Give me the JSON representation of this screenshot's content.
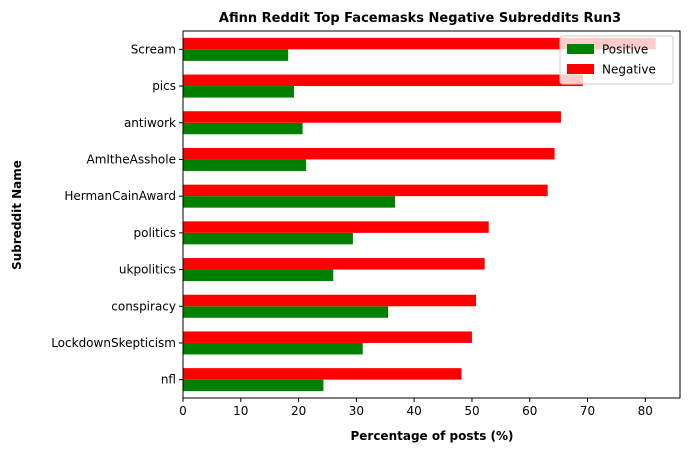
{
  "chart_data": {
    "type": "bar",
    "orientation": "horizontal",
    "title": "Afinn Reddit Top Facemasks Negative Subreddits Run3",
    "xlabel": "Percentage of posts (%)",
    "ylabel": "Subreddit Name",
    "xlim": [
      0,
      86
    ],
    "xticks": [
      "0",
      "10",
      "20",
      "30",
      "40",
      "50",
      "60",
      "70",
      "80"
    ],
    "categories": [
      "Scream",
      "pics",
      "antiwork",
      "AmItheAsshole",
      "HermanCainAward",
      "politics",
      "ukpolitics",
      "conspiracy",
      "LockdownSkepticism",
      "nfl"
    ],
    "series": [
      {
        "name": "Positive",
        "color": "#008000",
        "values": [
          18.2,
          19.2,
          20.7,
          21.3,
          36.7,
          29.4,
          26.0,
          35.5,
          31.1,
          24.3
        ]
      },
      {
        "name": "Negative",
        "color": "#ff0000",
        "values": [
          81.8,
          69.2,
          65.4,
          64.3,
          63.1,
          52.9,
          52.2,
          50.7,
          50.0,
          48.2
        ]
      }
    ],
    "legend_position": "top-right",
    "grid": false
  }
}
